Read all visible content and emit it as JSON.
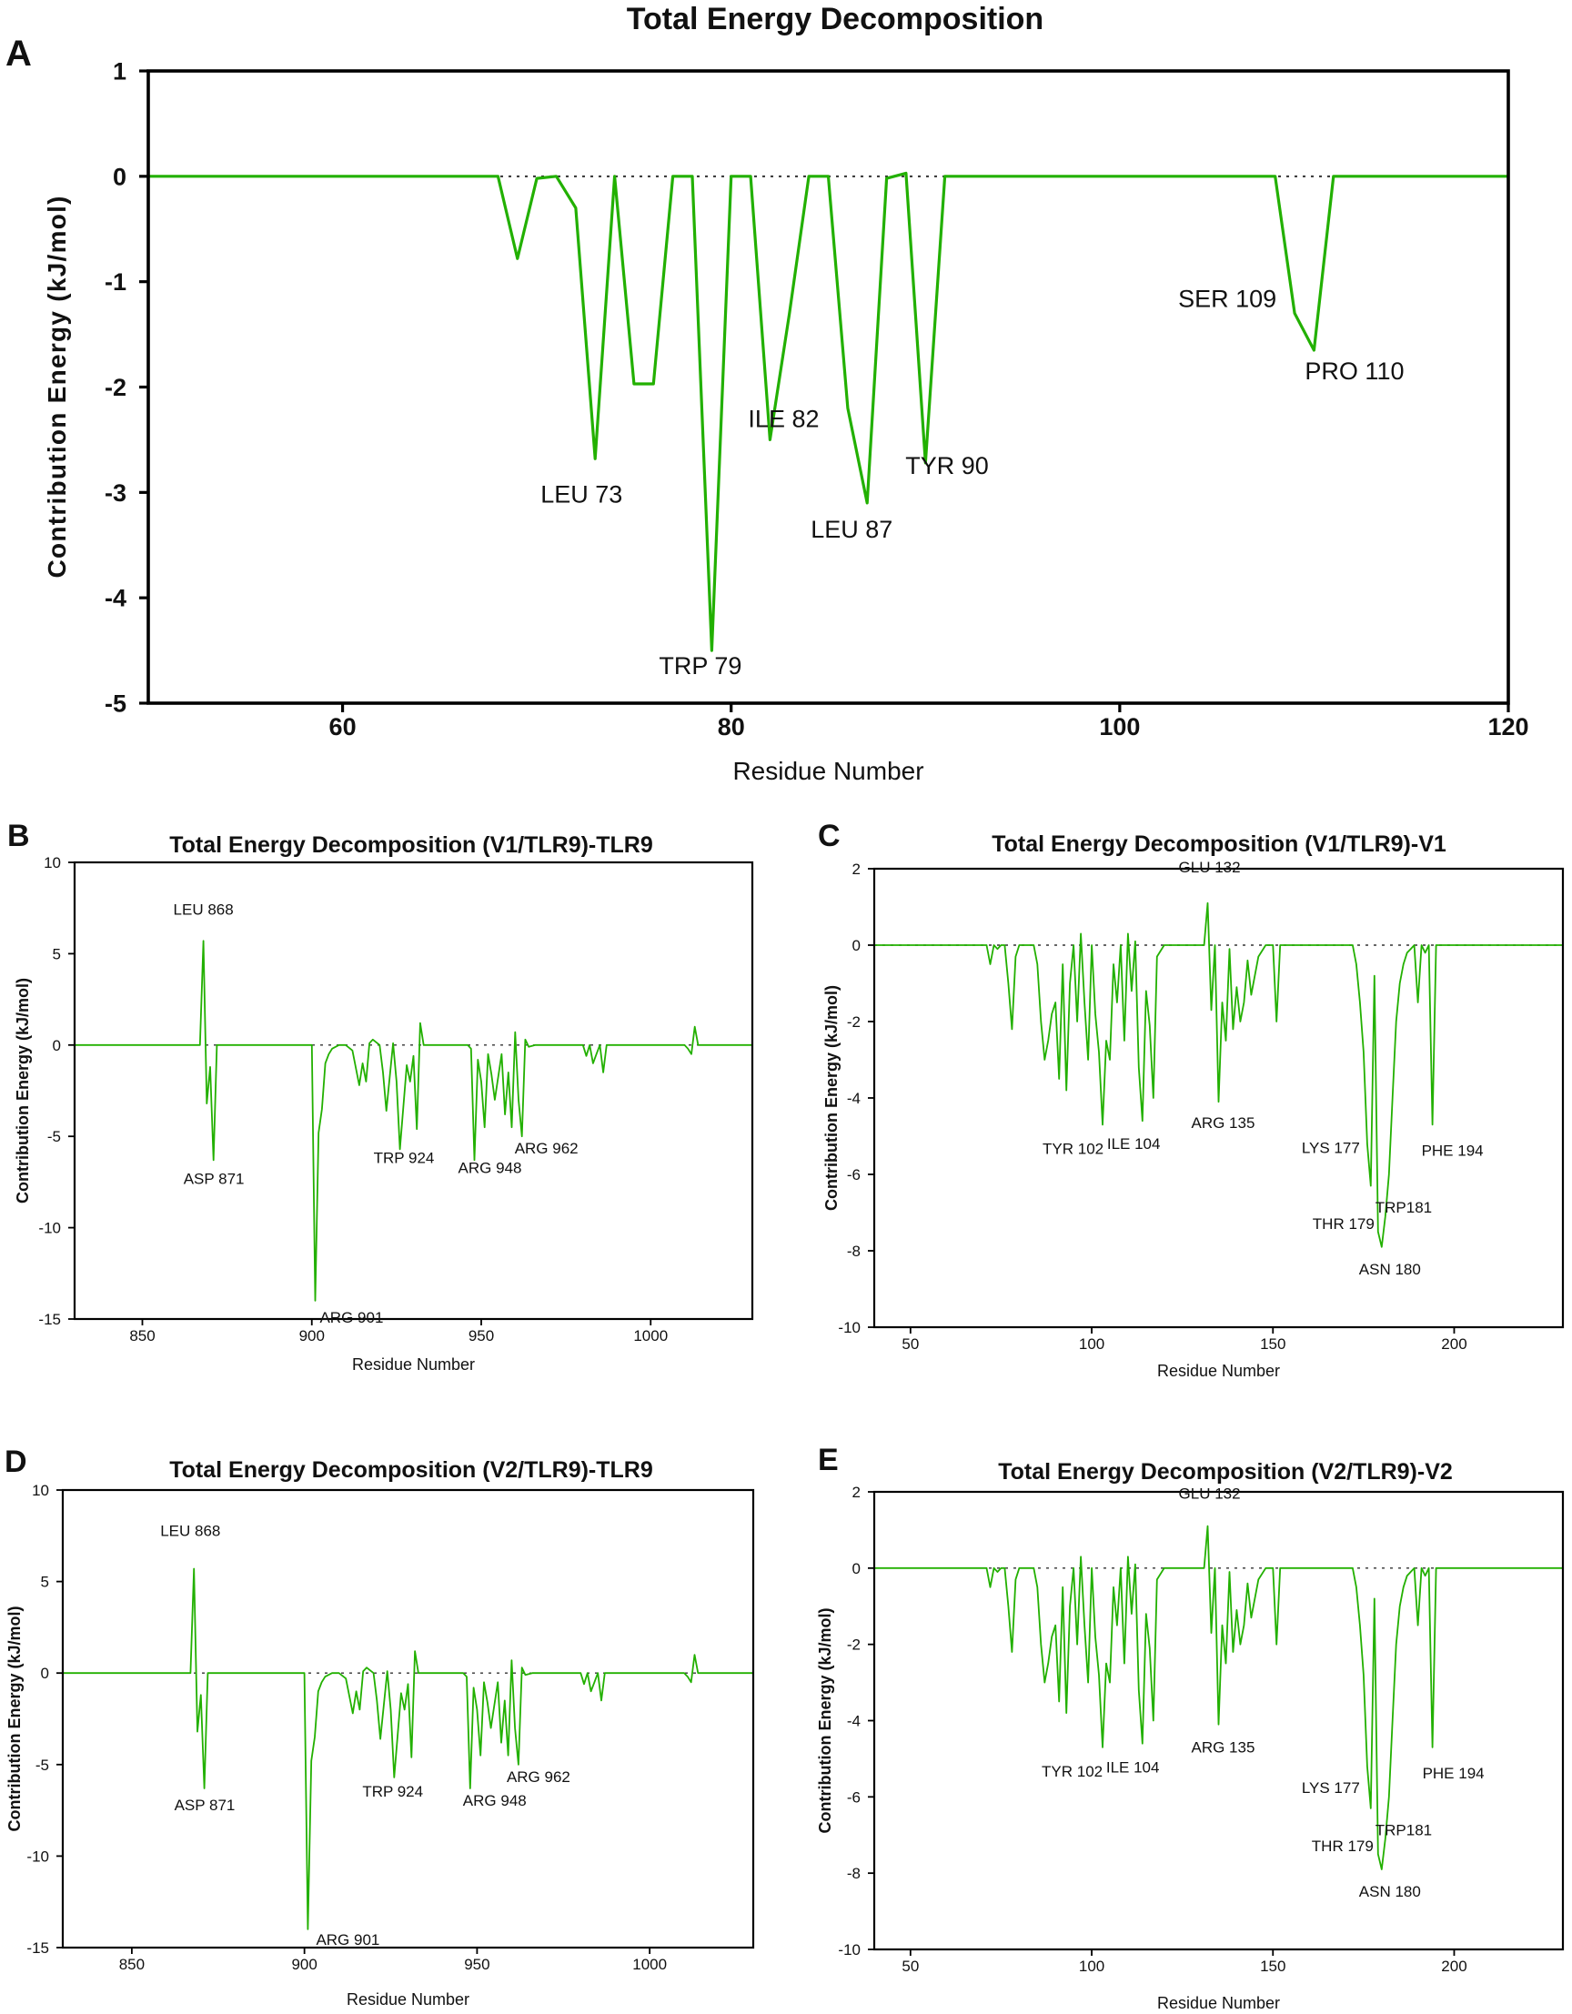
{
  "figure_title": "Total Energy Decomposition",
  "colors": {
    "series": "#22b000",
    "axis": "#000000",
    "zero_line": "#333333"
  },
  "chart_data": [
    {
      "panel": "A",
      "type": "line",
      "title": "Total Energy Decomposition",
      "xlabel": "Residue Number",
      "ylabel": "Contribution Energy (kJ/mol)",
      "xlim": [
        50,
        120
      ],
      "ylim": [
        -5,
        1
      ],
      "xticks": [
        60,
        80,
        100,
        120
      ],
      "yticks": [
        1,
        0,
        -1,
        -2,
        -3,
        -4,
        -5
      ],
      "series": [
        {
          "name": "Total energy",
          "x": [
            50,
            68,
            69,
            70,
            71,
            72,
            73,
            74,
            75,
            76,
            77,
            78,
            79,
            80,
            81,
            82,
            83,
            84,
            85,
            86,
            87,
            88,
            89,
            90,
            91,
            92,
            108,
            109,
            110,
            111,
            120
          ],
          "y": [
            0,
            0,
            -0.78,
            -0.02,
            0,
            -0.3,
            -2.68,
            0,
            -1.97,
            -1.97,
            0,
            0,
            -4.5,
            0,
            0,
            -2.5,
            -1.3,
            0,
            0,
            -2.2,
            -3.1,
            -0.02,
            0.03,
            -2.72,
            0,
            0,
            0,
            -1.3,
            -1.65,
            0,
            0
          ]
        }
      ],
      "annotations": [
        {
          "text": "LEU 73",
          "x": 73,
          "y": -2.68
        },
        {
          "text": "TRP 79",
          "x": 79,
          "y": -4.5
        },
        {
          "text": "ILE 82",
          "x": 82,
          "y": -2.5
        },
        {
          "text": "LEU 87",
          "x": 87,
          "y": -3.1
        },
        {
          "text": "TYR 90",
          "x": 90,
          "y": -2.72
        },
        {
          "text": "SER 109",
          "x": 109,
          "y": -1.3
        },
        {
          "text": "PRO 110",
          "x": 110,
          "y": -1.65
        }
      ]
    },
    {
      "panel": "B",
      "type": "line",
      "title": "Total Energy Decomposition (V1/TLR9)-TLR9",
      "xlabel": "Residue Number",
      "ylabel": "Contribution Energy (kJ/mol)",
      "xlim": [
        830,
        1030
      ],
      "ylim": [
        -15,
        10
      ],
      "xticks": [
        850,
        900,
        950,
        1000
      ],
      "yticks": [
        10,
        5,
        0,
        -5,
        -10,
        -15
      ],
      "series": [
        {
          "name": "Total energy",
          "x": [
            830,
            867,
            868,
            869,
            870,
            871,
            872,
            900,
            901,
            902,
            903,
            904,
            905,
            906,
            908,
            910,
            912,
            914,
            915,
            916,
            917,
            918,
            920,
            921,
            922,
            924,
            925,
            926,
            928,
            929,
            930,
            931,
            932,
            933,
            946,
            947,
            948,
            949,
            950,
            951,
            952,
            953,
            954,
            956,
            957,
            958,
            959,
            960,
            961,
            962,
            963,
            964,
            966,
            980,
            981,
            982,
            983,
            984,
            985,
            986,
            987,
            1010,
            1011,
            1012,
            1013,
            1014,
            1030
          ],
          "y": [
            0,
            0,
            5.7,
            -3.2,
            -1.2,
            -6.3,
            0,
            0,
            -14,
            -4.8,
            -3.5,
            -1,
            -0.5,
            -0.2,
            0,
            0,
            -0.3,
            -2.2,
            -1,
            -2,
            0.1,
            0.3,
            0,
            -1.5,
            -3.6,
            0.1,
            -2,
            -5.7,
            -1.1,
            -2,
            -0.6,
            -4.6,
            1.2,
            0,
            0,
            -0.2,
            -6.3,
            -0.8,
            -2,
            -4.5,
            -0.5,
            -1.6,
            -3,
            -0.5,
            -3.8,
            -1.5,
            -4.5,
            0.7,
            -3,
            -5,
            0.3,
            -0.1,
            0,
            0,
            -0.6,
            0,
            -1,
            -0.5,
            0,
            -1.5,
            0,
            0,
            -0.2,
            -0.5,
            1,
            0,
            0
          ]
        }
      ],
      "annotations": [
        {
          "text": "LEU 868",
          "x": 868,
          "y": 5.7
        },
        {
          "text": "ASP 871",
          "x": 871,
          "y": -6.3
        },
        {
          "text": "ARG 901",
          "x": 901,
          "y": -14
        },
        {
          "text": "TRP 924",
          "x": 926,
          "y": -5.7
        },
        {
          "text": "ARG 948",
          "x": 948,
          "y": -6.3
        },
        {
          "text": "ARG 962",
          "x": 962,
          "y": -5
        }
      ]
    },
    {
      "panel": "C",
      "type": "line",
      "title": "Total Energy Decomposition (V1/TLR9)-V1",
      "xlabel": "Residue Number",
      "ylabel": "Contribution Energy (kJ/mol)",
      "xlim": [
        40,
        230
      ],
      "ylim": [
        -10,
        2
      ],
      "xticks": [
        50,
        100,
        150,
        200
      ],
      "yticks": [
        2,
        0,
        -2,
        -4,
        -6,
        -8,
        -10
      ],
      "series": [
        {
          "name": "Total energy",
          "x": [
            40,
            71,
            72,
            73,
            74,
            75,
            76,
            77,
            78,
            79,
            80,
            84,
            85,
            86,
            87,
            88,
            89,
            90,
            91,
            92,
            93,
            94,
            95,
            96,
            97,
            98,
            99,
            100,
            101,
            102,
            103,
            104,
            105,
            106,
            107,
            108,
            109,
            110,
            111,
            112,
            113,
            114,
            115,
            116,
            117,
            118,
            120,
            131,
            132,
            133,
            134,
            135,
            136,
            137,
            138,
            139,
            140,
            141,
            142,
            143,
            144,
            146,
            148,
            150,
            151,
            152,
            153,
            172,
            173,
            174,
            175,
            176,
            177,
            178,
            179,
            180,
            181,
            182,
            183,
            184,
            185,
            186,
            187,
            188,
            189,
            190,
            191,
            192,
            193,
            194,
            195,
            230
          ],
          "y": [
            0,
            0,
            -0.5,
            0,
            -0.1,
            0,
            0,
            -1,
            -2.2,
            -0.3,
            0,
            0,
            -0.5,
            -2,
            -3,
            -2.5,
            -1.8,
            -1.5,
            -3.5,
            -0.5,
            -3.8,
            -1,
            0,
            -2,
            0.3,
            -1.5,
            -3,
            0,
            -1.8,
            -2.8,
            -4.7,
            -2.5,
            -3,
            -0.5,
            -1.5,
            0,
            -2.5,
            0.3,
            -1.2,
            0.1,
            -3.2,
            -4.6,
            -1.2,
            -2.1,
            -4,
            -0.3,
            0,
            0,
            1.1,
            -1.7,
            0,
            -4.1,
            -1.5,
            -2.5,
            -0.1,
            -2.2,
            -1.1,
            -2,
            -1.5,
            -0.4,
            -1.3,
            -0.3,
            0,
            0,
            -2,
            0,
            0,
            0,
            -0.5,
            -1.5,
            -2.8,
            -5.2,
            -6.3,
            -0.8,
            -7.5,
            -7.9,
            -7.1,
            -6,
            -4,
            -2,
            -1,
            -0.5,
            -0.2,
            -0.1,
            0,
            -1.5,
            0,
            -0.2,
            0,
            -4.7,
            0,
            0
          ]
        }
      ],
      "annotations": [
        {
          "text": "GLU 132",
          "x": 132,
          "y": 1.1
        },
        {
          "text": "TYR 102",
          "x": 102,
          "y": -4.7
        },
        {
          "text": "ILE 104",
          "x": 113,
          "y": -4.6
        },
        {
          "text": "ARG 135",
          "x": 135,
          "y": -4.1
        },
        {
          "text": "LYS 177",
          "x": 177,
          "y": -6.3
        },
        {
          "text": "THR 179",
          "x": 179,
          "y": -7.5
        },
        {
          "text": "TRP181",
          "x": 181,
          "y": -7.1
        },
        {
          "text": "ASN 180",
          "x": 180,
          "y": -7.9
        },
        {
          "text": "PHE 194",
          "x": 194,
          "y": -4.7
        }
      ]
    },
    {
      "panel": "D",
      "type": "line",
      "title": "Total Energy Decomposition (V2/TLR9)-TLR9",
      "xlabel": "Residue Number",
      "ylabel": "Contribution Energy (kJ/mol)",
      "xlim": [
        830,
        1030
      ],
      "ylim": [
        -15,
        10
      ],
      "xticks": [
        850,
        900,
        950,
        1000
      ],
      "yticks": [
        10,
        5,
        0,
        -5,
        -10,
        -15
      ],
      "series": [
        {
          "name": "Total energy",
          "x": [
            830,
            867,
            868,
            869,
            870,
            871,
            872,
            900,
            901,
            902,
            903,
            904,
            905,
            906,
            908,
            910,
            912,
            914,
            915,
            916,
            917,
            918,
            920,
            921,
            922,
            924,
            925,
            926,
            928,
            929,
            930,
            931,
            932,
            933,
            946,
            947,
            948,
            949,
            950,
            951,
            952,
            953,
            954,
            956,
            957,
            958,
            959,
            960,
            961,
            962,
            963,
            964,
            966,
            980,
            981,
            982,
            983,
            984,
            985,
            986,
            987,
            1010,
            1011,
            1012,
            1013,
            1014,
            1030
          ],
          "y": [
            0,
            0,
            5.7,
            -3.2,
            -1.2,
            -6.3,
            0,
            0,
            -14,
            -4.8,
            -3.5,
            -1,
            -0.5,
            -0.2,
            0,
            0,
            -0.3,
            -2.2,
            -1,
            -2,
            0.1,
            0.3,
            0,
            -1.5,
            -3.6,
            0.1,
            -2,
            -5.7,
            -1.1,
            -2,
            -0.6,
            -4.6,
            1.2,
            0,
            0,
            -0.2,
            -6.3,
            -0.8,
            -2,
            -4.5,
            -0.5,
            -1.6,
            -3,
            -0.5,
            -3.8,
            -1.5,
            -4.5,
            0.7,
            -3,
            -5,
            0.3,
            -0.1,
            0,
            0,
            -0.6,
            0,
            -1,
            -0.5,
            0,
            -1.5,
            0,
            0,
            -0.2,
            -0.5,
            1,
            0,
            0
          ]
        }
      ],
      "annotations": [
        {
          "text": "LEU 868",
          "x": 868,
          "y": 5.7
        },
        {
          "text": "ASP 871",
          "x": 871,
          "y": -6.3
        },
        {
          "text": "ARG 901",
          "x": 901,
          "y": -14
        },
        {
          "text": "TRP 924",
          "x": 926,
          "y": -5.7
        },
        {
          "text": "ARG 948",
          "x": 948,
          "y": -6.3
        },
        {
          "text": "ARG 962",
          "x": 962,
          "y": -5
        }
      ]
    },
    {
      "panel": "E",
      "type": "line",
      "title": "Total Energy Decomposition (V2/TLR9)-V2",
      "xlabel": "Residue Number",
      "ylabel": "Contribution Energy (kJ/mol)",
      "xlim": [
        40,
        230
      ],
      "ylim": [
        -10,
        2
      ],
      "xticks": [
        50,
        100,
        150,
        200
      ],
      "yticks": [
        2,
        0,
        -2,
        -4,
        -6,
        -8,
        -10
      ],
      "series": [
        {
          "name": "Total energy",
          "x": [
            40,
            71,
            72,
            73,
            74,
            75,
            76,
            77,
            78,
            79,
            80,
            84,
            85,
            86,
            87,
            88,
            89,
            90,
            91,
            92,
            93,
            94,
            95,
            96,
            97,
            98,
            99,
            100,
            101,
            102,
            103,
            104,
            105,
            106,
            107,
            108,
            109,
            110,
            111,
            112,
            113,
            114,
            115,
            116,
            117,
            118,
            120,
            131,
            132,
            133,
            134,
            135,
            136,
            137,
            138,
            139,
            140,
            141,
            142,
            143,
            144,
            146,
            148,
            150,
            151,
            152,
            153,
            172,
            173,
            174,
            175,
            176,
            177,
            178,
            179,
            180,
            181,
            182,
            183,
            184,
            185,
            186,
            187,
            188,
            189,
            190,
            191,
            192,
            193,
            194,
            195,
            230
          ],
          "y": [
            0,
            0,
            -0.5,
            0,
            -0.1,
            0,
            0,
            -1,
            -2.2,
            -0.3,
            0,
            0,
            -0.5,
            -2,
            -3,
            -2.5,
            -1.8,
            -1.5,
            -3.5,
            -0.5,
            -3.8,
            -1,
            0,
            -2,
            0.3,
            -1.5,
            -3,
            0,
            -1.8,
            -2.8,
            -4.7,
            -2.5,
            -3,
            -0.5,
            -1.5,
            0,
            -2.5,
            0.3,
            -1.2,
            0.1,
            -3.2,
            -4.6,
            -1.2,
            -2.1,
            -4,
            -0.3,
            0,
            0,
            1.1,
            -1.7,
            0,
            -4.1,
            -1.5,
            -2.5,
            -0.1,
            -2.2,
            -1.1,
            -2,
            -1.5,
            -0.4,
            -1.3,
            -0.3,
            0,
            0,
            -2,
            0,
            0,
            0,
            -0.5,
            -1.5,
            -2.8,
            -5.2,
            -6.3,
            -0.8,
            -7.5,
            -7.9,
            -7.1,
            -6,
            -4,
            -2,
            -1,
            -0.5,
            -0.2,
            -0.1,
            0,
            -1.5,
            0,
            -0.2,
            0,
            -4.7,
            0,
            0
          ]
        }
      ],
      "annotations": [
        {
          "text": "GLU 132",
          "x": 132,
          "y": 1.1
        },
        {
          "text": "TYR 102",
          "x": 102,
          "y": -4.7
        },
        {
          "text": "ILE 104",
          "x": 113,
          "y": -4.6
        },
        {
          "text": "ARG 135",
          "x": 135,
          "y": -4.1
        },
        {
          "text": "LYS 177",
          "x": 177,
          "y": -6.3
        },
        {
          "text": "THR 179",
          "x": 179,
          "y": -7.5
        },
        {
          "text": "TRP181",
          "x": 181,
          "y": -7.1
        },
        {
          "text": "ASN 180",
          "x": 180,
          "y": -7.9
        },
        {
          "text": "PHE 194",
          "x": 194,
          "y": -4.7
        }
      ]
    }
  ]
}
